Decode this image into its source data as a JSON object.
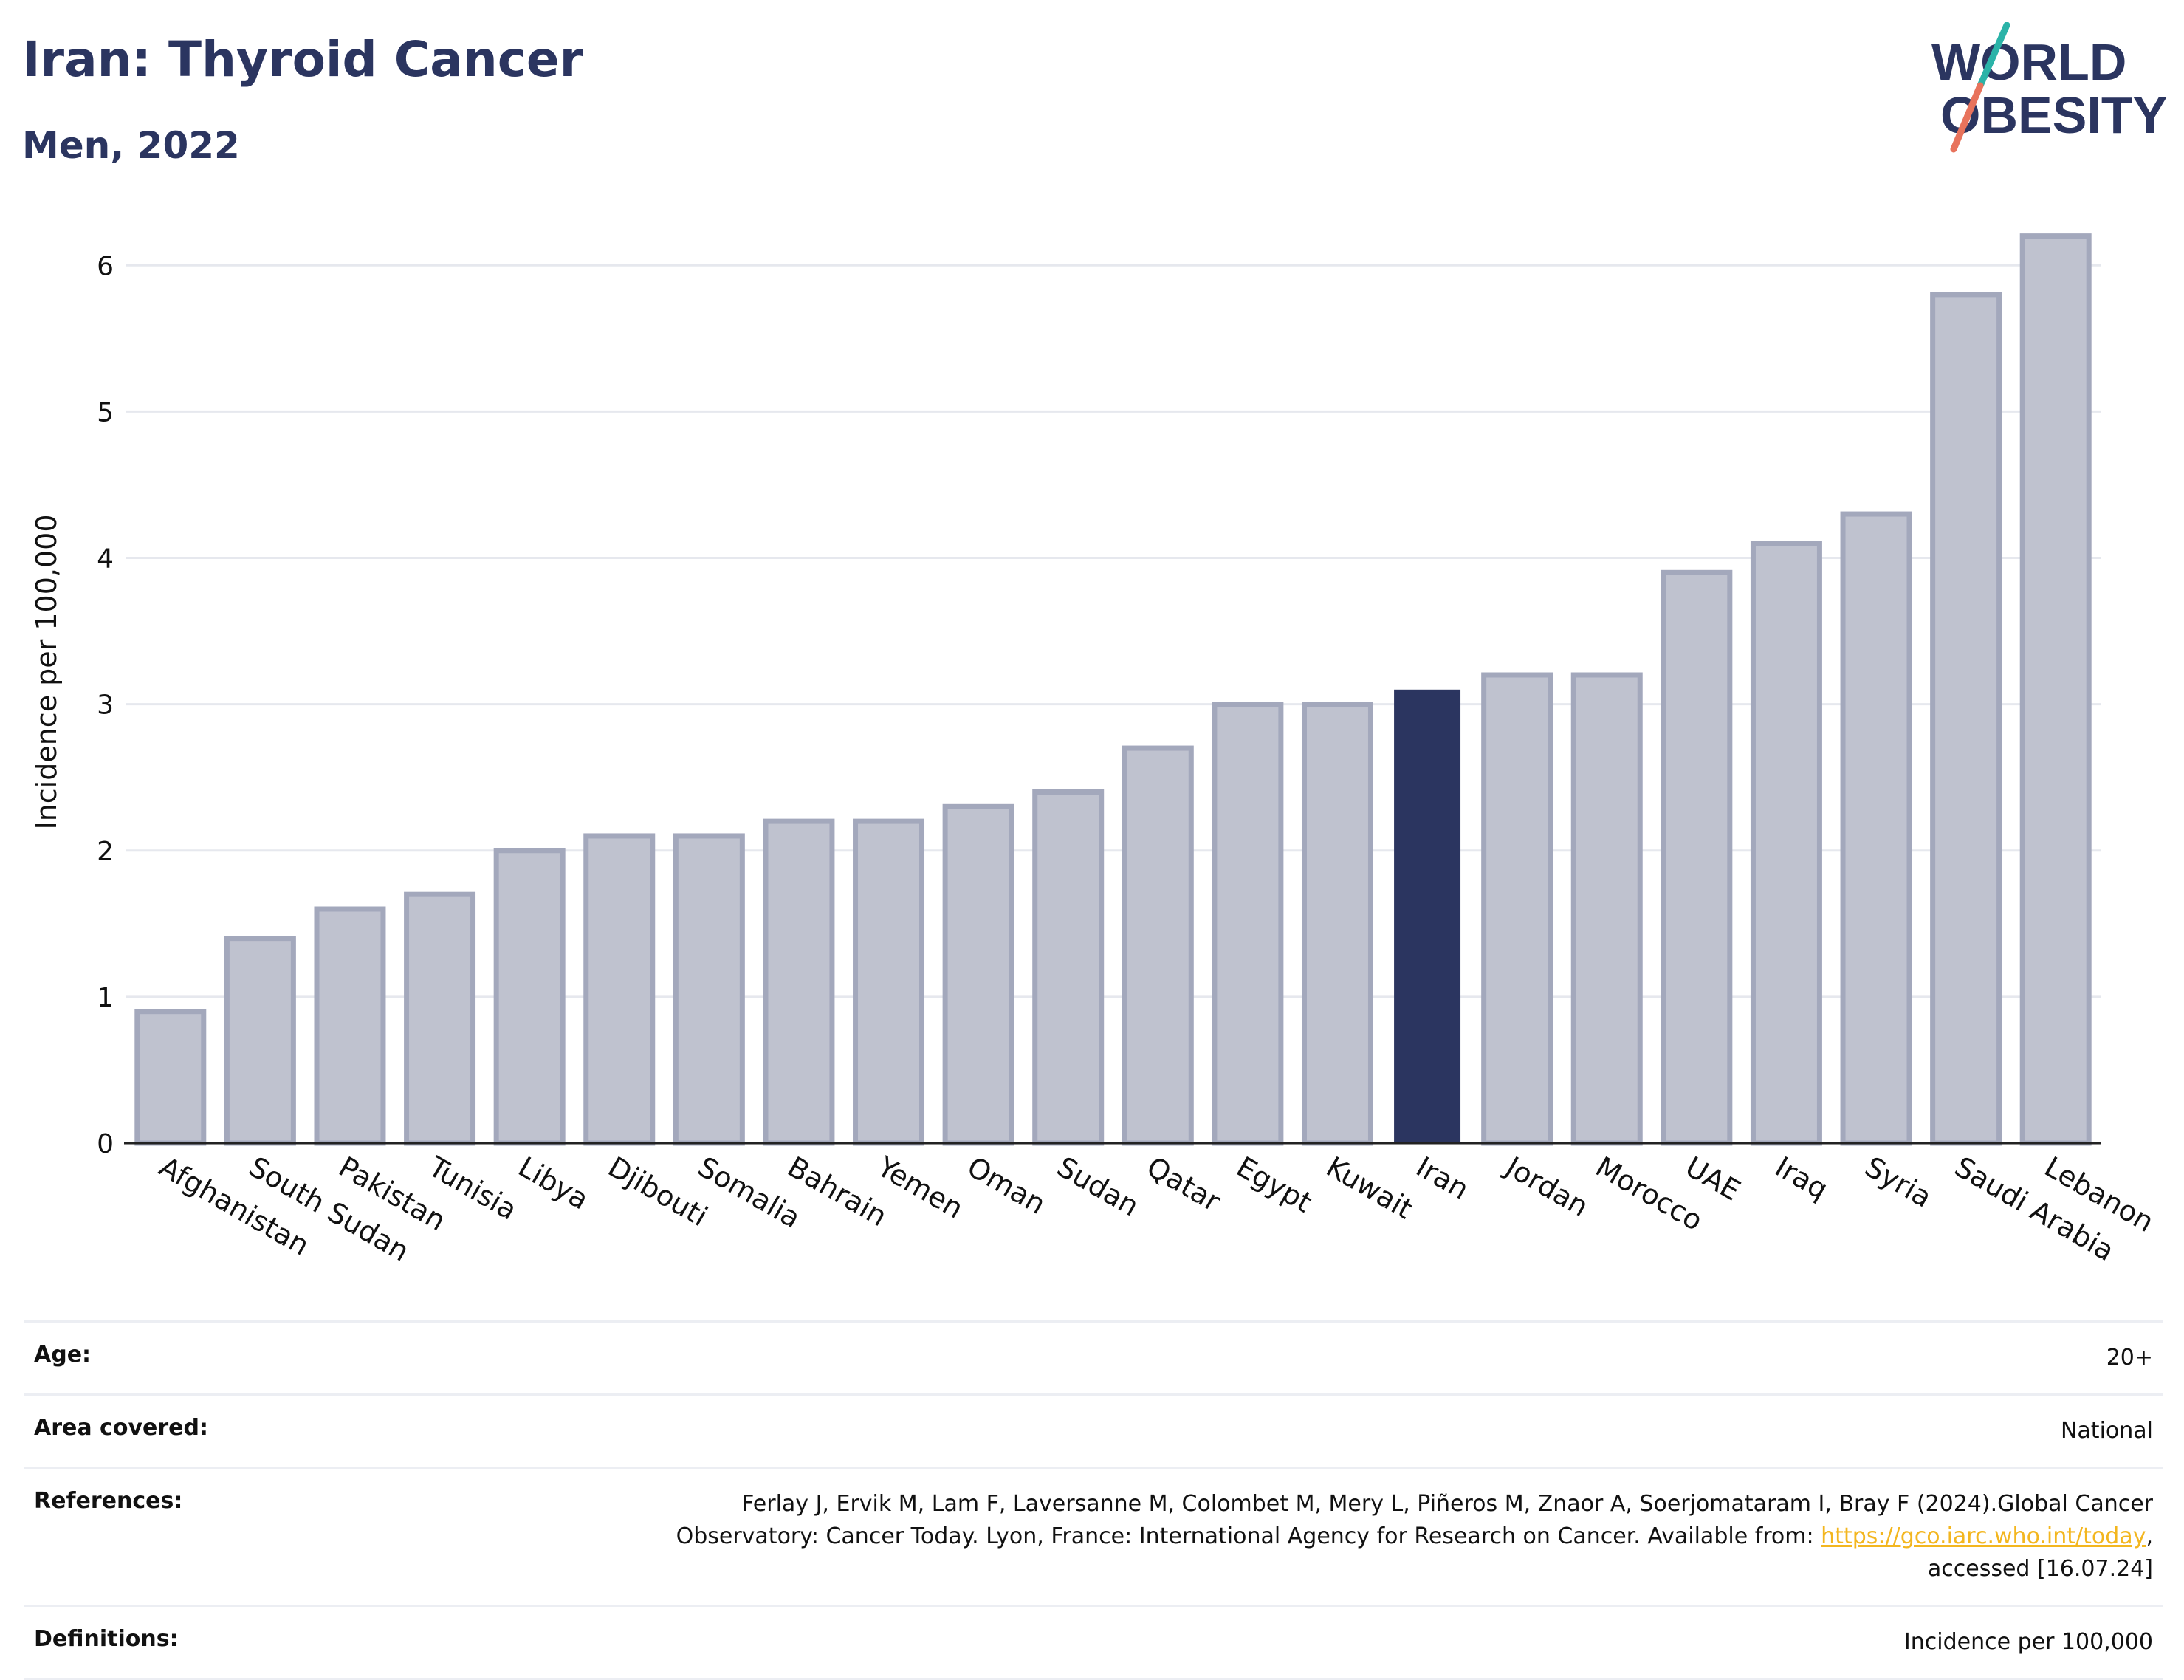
{
  "header": {
    "title": "Iran: Thyroid Cancer",
    "subtitle": "Men, 2022"
  },
  "logo": {
    "line1": "WORLD",
    "line2": "OBESITY",
    "colors": {
      "text": "#2b3560",
      "slash_top": "#2bb3a8",
      "slash_bottom": "#e8735c"
    }
  },
  "chart_data": {
    "type": "bar",
    "ylabel": "Incidence per 100,000",
    "xlabel": "",
    "ylim": [
      0,
      6.4
    ],
    "yticks": [
      0,
      1,
      2,
      3,
      4,
      5,
      6
    ],
    "grid": true,
    "highlight": "Iran",
    "colors": {
      "bar": "#bfc2cf",
      "bar_edge": "#a3a8bc",
      "highlight": "#2b3560",
      "grid": "#e6e8ee",
      "axis": "#222222"
    },
    "categories": [
      "Afghanistan",
      "South Sudan",
      "Pakistan",
      "Tunisia",
      "Libya",
      "Djibouti",
      "Somalia",
      "Bahrain",
      "Yemen",
      "Oman",
      "Sudan",
      "Qatar",
      "Egypt",
      "Kuwait",
      "Iran",
      "Jordan",
      "Morocco",
      "UAE",
      "Iraq",
      "Syria",
      "Saudi Arabia",
      "Lebanon"
    ],
    "values": [
      0.9,
      1.4,
      1.6,
      1.7,
      2.0,
      2.1,
      2.1,
      2.2,
      2.2,
      2.3,
      2.4,
      2.7,
      3.0,
      3.0,
      3.1,
      3.2,
      3.2,
      3.9,
      4.1,
      4.3,
      5.8,
      6.2
    ]
  },
  "meta": {
    "rows": [
      {
        "label": "Age:",
        "value": "20+"
      },
      {
        "label": "Area covered:",
        "value": "National"
      },
      {
        "label": "References:",
        "value_line1": "Ferlay J, Ervik M, Lam F, Laversanne M, Colombet M, Mery L, Piñeros M, Znaor A, Soerjomataram I, Bray F (2024).Global Cancer",
        "value_line2_before": "Observatory: Cancer Today. Lyon, France: International Agency for Research on Cancer. Available from: ",
        "link": "https://gco.iarc.who.int/today",
        "value_line2_after": ",",
        "value_line3": "accessed [16.07.24]"
      },
      {
        "label": "Definitions:",
        "value": "Incidence per 100,000"
      }
    ]
  }
}
